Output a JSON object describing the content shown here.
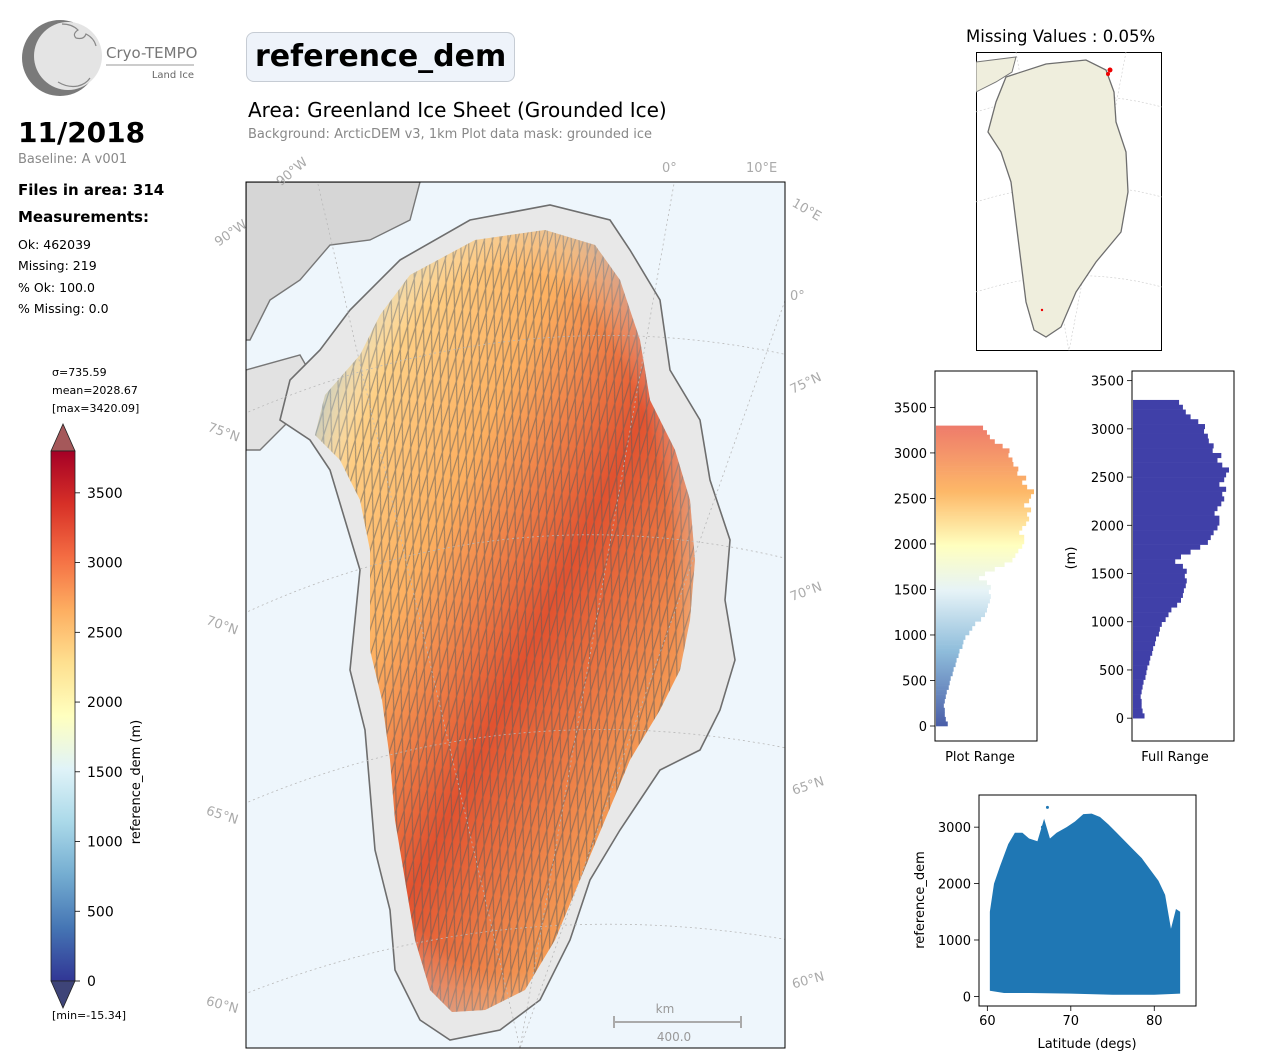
{
  "logo": {
    "name": "Cryo-TEMPO",
    "subtitle": "Land Ice"
  },
  "header": {
    "variable": "reference_dem",
    "area": "Area: Greenland Ice Sheet (Grounded Ice)",
    "background": "Background: ArcticDEM v3, 1km   Plot data mask: grounded ice"
  },
  "summary": {
    "date": "11/2018",
    "baseline": "Baseline: A v001",
    "files": "Files in area: 314",
    "measurements_label": "Measurements:",
    "ok": "Ok: 462039",
    "missing": "Missing: 219",
    "pct_ok": "% Ok: 100.0",
    "pct_missing": "% Missing: 0.0"
  },
  "colorbar": {
    "sigma": "σ=735.59",
    "mean": "mean=2028.67",
    "max": "[max=3420.09]",
    "min": "[min=-15.34]",
    "label": "reference_dem (m)",
    "ticks": [
      "0",
      "500",
      "1000",
      "1500",
      "2000",
      "2500",
      "3000",
      "3500"
    ],
    "colors": [
      "#313695",
      "#4575b4",
      "#74add1",
      "#abd9e9",
      "#e0f3f8",
      "#ffffbf",
      "#fee090",
      "#fdae61",
      "#f46d43",
      "#d73027",
      "#a50026"
    ]
  },
  "map": {
    "grid_labels": [
      "90°W",
      "90°W",
      "0°",
      "10°E",
      "10°E",
      "0°",
      "75°N",
      "75°N",
      "70°N",
      "70°N",
      "65°N",
      "65°N",
      "60°N",
      "60°N"
    ],
    "scalebar_unit": "km",
    "scalebar_value": "400.0"
  },
  "missing_map": {
    "title": "Missing Values : 0.05%"
  },
  "hist_plot": {
    "xlabel": "Plot Range",
    "yticks": [
      "0",
      "500",
      "1000",
      "1500",
      "2000",
      "2500",
      "3000",
      "3500"
    ],
    "bins": [
      [
        0,
        50,
        0.12
      ],
      [
        50,
        100,
        0.1
      ],
      [
        100,
        150,
        0.09
      ],
      [
        150,
        200,
        0.09
      ],
      [
        200,
        250,
        0.08
      ],
      [
        250,
        300,
        0.09
      ],
      [
        300,
        350,
        0.1
      ],
      [
        350,
        400,
        0.11
      ],
      [
        400,
        450,
        0.13
      ],
      [
        450,
        500,
        0.14
      ],
      [
        500,
        550,
        0.15
      ],
      [
        550,
        600,
        0.17
      ],
      [
        600,
        650,
        0.18
      ],
      [
        650,
        700,
        0.2
      ],
      [
        700,
        750,
        0.21
      ],
      [
        750,
        800,
        0.23
      ],
      [
        800,
        850,
        0.24
      ],
      [
        850,
        900,
        0.27
      ],
      [
        900,
        950,
        0.28
      ],
      [
        950,
        1000,
        0.3
      ],
      [
        1000,
        1050,
        0.34
      ],
      [
        1050,
        1100,
        0.37
      ],
      [
        1100,
        1150,
        0.4
      ],
      [
        1150,
        1200,
        0.46
      ],
      [
        1200,
        1250,
        0.5
      ],
      [
        1250,
        1300,
        0.52
      ],
      [
        1300,
        1350,
        0.53
      ],
      [
        1350,
        1400,
        0.55
      ],
      [
        1400,
        1450,
        0.56
      ],
      [
        1450,
        1500,
        0.54
      ],
      [
        1500,
        1550,
        0.56
      ],
      [
        1550,
        1600,
        0.52
      ],
      [
        1600,
        1650,
        0.44
      ],
      [
        1650,
        1700,
        0.5
      ],
      [
        1700,
        1750,
        0.6
      ],
      [
        1750,
        1800,
        0.7
      ],
      [
        1800,
        1850,
        0.78
      ],
      [
        1850,
        1900,
        0.81
      ],
      [
        1900,
        1950,
        0.84
      ],
      [
        1950,
        2000,
        0.88
      ],
      [
        2000,
        2050,
        0.9
      ],
      [
        2050,
        2100,
        0.9
      ],
      [
        2100,
        2150,
        0.85
      ],
      [
        2150,
        2200,
        0.88
      ],
      [
        2200,
        2250,
        0.92
      ],
      [
        2250,
        2300,
        0.95
      ],
      [
        2300,
        2350,
        0.93
      ],
      [
        2350,
        2400,
        0.97
      ],
      [
        2400,
        2450,
        0.9
      ],
      [
        2450,
        2500,
        0.95
      ],
      [
        2500,
        2550,
        0.97
      ],
      [
        2550,
        2600,
        1.0
      ],
      [
        2600,
        2650,
        0.93
      ],
      [
        2650,
        2700,
        0.88
      ],
      [
        2700,
        2750,
        0.92
      ],
      [
        2750,
        2800,
        0.83
      ],
      [
        2800,
        2850,
        0.84
      ],
      [
        2850,
        2900,
        0.79
      ],
      [
        2900,
        2950,
        0.78
      ],
      [
        2950,
        3000,
        0.74
      ],
      [
        3000,
        3050,
        0.75
      ],
      [
        3050,
        3100,
        0.68
      ],
      [
        3100,
        3150,
        0.6
      ],
      [
        3150,
        3200,
        0.55
      ],
      [
        3200,
        3250,
        0.52
      ],
      [
        3250,
        3300,
        0.48
      ],
      [
        3300,
        3350,
        0.0
      ]
    ]
  },
  "hist_full": {
    "xlabel": "Full Range",
    "ylabel": "(m)",
    "yticks": [
      "0",
      "500",
      "1000",
      "1500",
      "2000",
      "2500",
      "3000",
      "3500"
    ],
    "color": "#4040a8"
  },
  "scatter": {
    "xlabel": "Latitude (degs)",
    "ylabel": "reference_dem",
    "xticks": [
      "60",
      "70",
      "80"
    ],
    "yticks": [
      "0",
      "1000",
      "2000",
      "3000"
    ],
    "color": "#1f77b4",
    "upper_envelope": [
      [
        60.3,
        1500
      ],
      [
        60.8,
        2000
      ],
      [
        61.5,
        2300
      ],
      [
        62.5,
        2700
      ],
      [
        63.3,
        2900
      ],
      [
        64.2,
        2900
      ],
      [
        65.0,
        2800
      ],
      [
        66.0,
        2750
      ],
      [
        66.8,
        3150
      ],
      [
        67.5,
        2800
      ],
      [
        68.3,
        2900
      ],
      [
        69.5,
        3000
      ],
      [
        70.5,
        3100
      ],
      [
        71.5,
        3230
      ],
      [
        72.5,
        3240
      ],
      [
        73.5,
        3180
      ],
      [
        74.5,
        3050
      ],
      [
        75.5,
        2900
      ],
      [
        76.5,
        2750
      ],
      [
        77.5,
        2600
      ],
      [
        78.5,
        2450
      ],
      [
        79.5,
        2250
      ],
      [
        80.5,
        2050
      ],
      [
        81.3,
        1800
      ],
      [
        82.0,
        1200
      ],
      [
        82.6,
        1550
      ],
      [
        83.1,
        1500
      ]
    ],
    "lower_envelope": [
      [
        60.3,
        100
      ],
      [
        62,
        60
      ],
      [
        65,
        60
      ],
      [
        70,
        50
      ],
      [
        75,
        30
      ],
      [
        80,
        30
      ],
      [
        83.1,
        50
      ]
    ]
  }
}
